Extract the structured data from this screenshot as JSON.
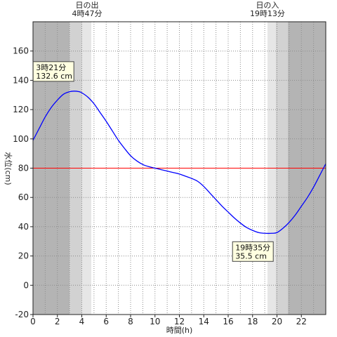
{
  "chart_data": {
    "type": "line",
    "xlabel": "時間(h)",
    "ylabel": "水位(cm)",
    "xlim": [
      0,
      24
    ],
    "ylim": [
      -20,
      180
    ],
    "x_ticks": [
      "0",
      "2",
      "4",
      "6",
      "8",
      "10",
      "12",
      "14",
      "16",
      "18",
      "20",
      "22"
    ],
    "y_ticks": [
      "-20",
      "0",
      "20",
      "40",
      "60",
      "80",
      "100",
      "120",
      "140",
      "160"
    ],
    "grid": true,
    "series": [
      {
        "color": "#0000ff",
        "x": [
          0,
          0.5,
          1,
          1.5,
          2,
          2.5,
          3,
          3.35,
          3.75,
          4,
          4.5,
          5,
          5.5,
          6,
          6.5,
          7,
          7.5,
          8,
          8.5,
          9,
          9.5,
          10,
          10.5,
          11,
          11.5,
          12,
          12.5,
          13,
          13.5,
          14,
          14.5,
          15,
          15.5,
          16,
          16.5,
          17,
          17.5,
          18,
          18.5,
          19,
          19.58,
          20,
          20.5,
          21,
          21.5,
          22,
          22.5,
          23,
          23.5,
          24
        ],
        "y": [
          99,
          107,
          115,
          121.5,
          126.5,
          130.5,
          132.2,
          132.6,
          132.3,
          131.5,
          128.5,
          124,
          118,
          112,
          105.5,
          99,
          93.5,
          88.5,
          85,
          82.5,
          81,
          80,
          79,
          78,
          77,
          76,
          74.5,
          73,
          71,
          67.5,
          63,
          58.5,
          54,
          50,
          46,
          42.5,
          39.5,
          37.5,
          36,
          35.5,
          35.5,
          36,
          39,
          43,
          48,
          54,
          60,
          67,
          75,
          83
        ]
      }
    ],
    "reference_line": {
      "y": 80,
      "color": "#ff0000"
    },
    "annotations": [
      {
        "x": 3.35,
        "y": 132.6,
        "time": "3時21分",
        "value": "132.6 cm"
      },
      {
        "x": 19.58,
        "y": 35.5,
        "time": "19時35分",
        "value": "35.5 cm"
      }
    ],
    "sunrise": {
      "label": "日の出",
      "time": "4時47分",
      "x": 4.78
    },
    "sunset": {
      "label": "日の入",
      "time": "19時13分",
      "x": 19.22
    },
    "colors": {
      "night": "#b4b4b4",
      "twilight": "#d2d2d2",
      "dawn": "#e6e6e6",
      "day": "#ffffff"
    }
  }
}
